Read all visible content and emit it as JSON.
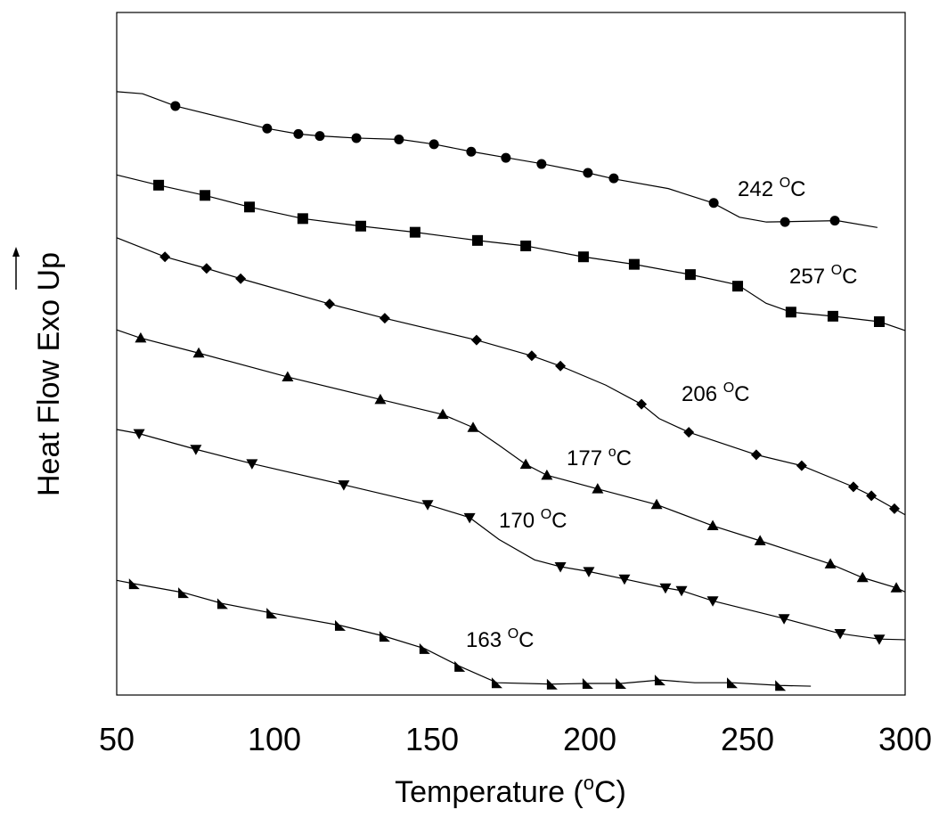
{
  "chart_data": {
    "type": "line",
    "xlabel": {
      "text": "Temperature (",
      "sup": "o",
      "unit": "C)"
    },
    "ylabel": "Heat Flow Exo Up",
    "xlim": [
      50,
      300
    ],
    "xticks": [
      50,
      100,
      150,
      200,
      250,
      300
    ],
    "ylim": [
      0,
      100
    ],
    "color": "#000000",
    "series": [
      {
        "marker": "circle",
        "x": [
          50,
          58.2,
          68.6,
          97.7,
          107.6,
          114.7,
          126.0,
          140.1,
          150.6,
          162.7,
          174.0,
          185.3,
          199.4,
          207.9,
          224.9,
          239.0,
          247.5,
          256.0,
          278.5,
          291.2
        ],
        "values": [
          88.4,
          88.1,
          86.3,
          83.0,
          82.2,
          81.9,
          81.6,
          81.4,
          80.7,
          79.6,
          78.7,
          77.8,
          76.5,
          75.6,
          74.2,
          72.1,
          70.0,
          69.3,
          69.5,
          68.5
        ],
        "markers": {
          "x": [
            68.6,
            97.7,
            107.6,
            114.4,
            126.0,
            139.5,
            150.6,
            162.4,
            173.4,
            184.7,
            199.4,
            207.6,
            239.3,
            261.9,
            277.7
          ],
          "values": [
            86.3,
            83.0,
            82.2,
            81.9,
            81.6,
            81.4,
            80.7,
            79.6,
            78.7,
            77.8,
            76.5,
            75.7,
            72.1,
            69.3,
            69.5
          ]
        },
        "annotation": {
          "text": "242 ",
          "sup": "O",
          "unit": "C"
        }
      },
      {
        "marker": "square",
        "x": [
          50,
          63.3,
          78.0,
          92.1,
          109.0,
          127.4,
          144.6,
          164.4,
          179.7,
          198.0,
          214.1,
          231.9,
          246.9,
          255.9,
          263.8,
          277.1,
          291.8,
          300
        ],
        "values": [
          76.2,
          74.7,
          73.2,
          71.5,
          69.8,
          68.7,
          67.8,
          66.6,
          65.8,
          64.2,
          63.1,
          61.6,
          60.1,
          57.4,
          56.1,
          55.5,
          54.7,
          53.4
        ],
        "markers": {
          "x": [
            63.3,
            78.0,
            92.1,
            109.0,
            127.4,
            144.6,
            164.4,
            179.7,
            198.0,
            214.1,
            231.9,
            246.9,
            263.8,
            277.1,
            291.8
          ],
          "values": [
            74.7,
            73.2,
            71.5,
            69.8,
            68.7,
            67.8,
            66.6,
            65.8,
            64.2,
            63.1,
            61.6,
            59.9,
            56.1,
            55.5,
            54.7
          ]
        },
        "annotation": {
          "text": "257 ",
          "sup": "O",
          "unit": "C"
        }
      },
      {
        "marker": "diamond",
        "x": [
          50,
          65.3,
          78.5,
          89.3,
          117.5,
          135.0,
          164.1,
          181.6,
          190.7,
          205.1,
          216.4,
          222.0,
          231.4,
          252.8,
          267.2,
          283.6,
          289.3,
          296.6,
          300
        ],
        "values": [
          67.0,
          64.2,
          62.5,
          61.0,
          57.3,
          55.2,
          52.0,
          49.7,
          48.2,
          45.4,
          42.6,
          40.5,
          38.5,
          35.2,
          33.6,
          30.5,
          29.2,
          27.3,
          26.4
        ],
        "markers": {
          "x": [
            65.3,
            78.5,
            89.3,
            117.5,
            135.0,
            164.1,
            181.6,
            190.7,
            216.4,
            231.4,
            252.8,
            267.2,
            283.6,
            289.3,
            296.6
          ],
          "values": [
            64.2,
            62.5,
            61.0,
            57.3,
            55.2,
            52.0,
            49.7,
            48.2,
            42.6,
            38.5,
            35.2,
            33.6,
            30.5,
            29.2,
            27.3
          ]
        },
        "annotation": {
          "text": "206 ",
          "sup": "O",
          "unit": "C"
        }
      },
      {
        "marker": "triangle-up",
        "x": [
          50,
          57.6,
          76.0,
          104.2,
          133.6,
          153.4,
          163.0,
          171.2,
          179.7,
          186.4,
          202.5,
          221.2,
          239.0,
          254.0,
          276.3,
          286.5,
          297.2,
          300
        ],
        "values": [
          53.5,
          52.3,
          50.1,
          46.6,
          43.3,
          41.1,
          39.2,
          36.6,
          33.8,
          32.2,
          30.2,
          27.9,
          24.8,
          22.6,
          19.2,
          17.2,
          15.7,
          15.1
        ],
        "markers": {
          "x": [
            57.6,
            76.0,
            104.2,
            133.6,
            153.4,
            163.0,
            179.7,
            186.4,
            202.5,
            221.2,
            239.0,
            254.0,
            276.3,
            286.5,
            297.2
          ],
          "values": [
            52.3,
            50.1,
            46.6,
            43.3,
            41.1,
            39.2,
            33.8,
            32.2,
            30.2,
            27.9,
            24.8,
            22.6,
            19.2,
            17.2,
            15.7
          ]
        },
        "annotation": {
          "text": "177 ",
          "sup": "o",
          "unit": "C"
        }
      },
      {
        "marker": "triangle-down",
        "x": [
          50,
          57.1,
          75.1,
          92.9,
          122.0,
          148.6,
          161.9,
          171.2,
          182.5,
          190.7,
          199.7,
          211.0,
          224.0,
          229.1,
          239.0,
          261.6,
          279.4,
          291.8,
          300
        ],
        "values": [
          38.9,
          38.3,
          36.0,
          33.9,
          30.8,
          27.9,
          26.0,
          22.8,
          19.8,
          18.8,
          18.1,
          17.0,
          15.7,
          15.3,
          13.8,
          11.2,
          9.0,
          8.2,
          8.1
        ],
        "markers": {
          "x": [
            57.1,
            75.1,
            92.9,
            122.0,
            148.6,
            161.9,
            190.7,
            199.7,
            211.0,
            224.0,
            229.1,
            239.0,
            261.6,
            279.4,
            291.8
          ],
          "values": [
            38.3,
            36.0,
            33.9,
            30.8,
            27.9,
            26.0,
            18.8,
            18.1,
            17.0,
            15.7,
            15.3,
            13.8,
            11.2,
            9.0,
            8.2
          ]
        },
        "annotation": {
          "text": "170 ",
          "sup": "O",
          "unit": "C"
        }
      },
      {
        "marker": "triangle-corner",
        "x": [
          50,
          55.6,
          71.2,
          83.6,
          99.2,
          120.9,
          135.0,
          147.7,
          158.8,
          170.6,
          188.1,
          199.4,
          209.9,
          222.3,
          233.3,
          245.2,
          260.5,
          270.1
        ],
        "values": [
          16.8,
          16.3,
          15.0,
          13.4,
          12.0,
          10.2,
          8.6,
          6.8,
          4.2,
          1.8,
          1.6,
          1.7,
          1.7,
          2.2,
          1.8,
          1.8,
          1.4,
          1.3
        ],
        "markers": {
          "x": [
            55.6,
            71.2,
            83.6,
            99.2,
            120.9,
            135.0,
            147.7,
            158.8,
            170.6,
            188.1,
            199.4,
            209.9,
            222.3,
            245.2,
            260.5
          ],
          "values": [
            16.3,
            15.0,
            13.4,
            12.0,
            10.2,
            8.6,
            6.8,
            4.2,
            1.8,
            1.6,
            1.7,
            1.7,
            2.2,
            1.8,
            1.4
          ]
        },
        "annotation": {
          "text": "163 ",
          "sup": "O",
          "unit": "C"
        }
      }
    ]
  }
}
